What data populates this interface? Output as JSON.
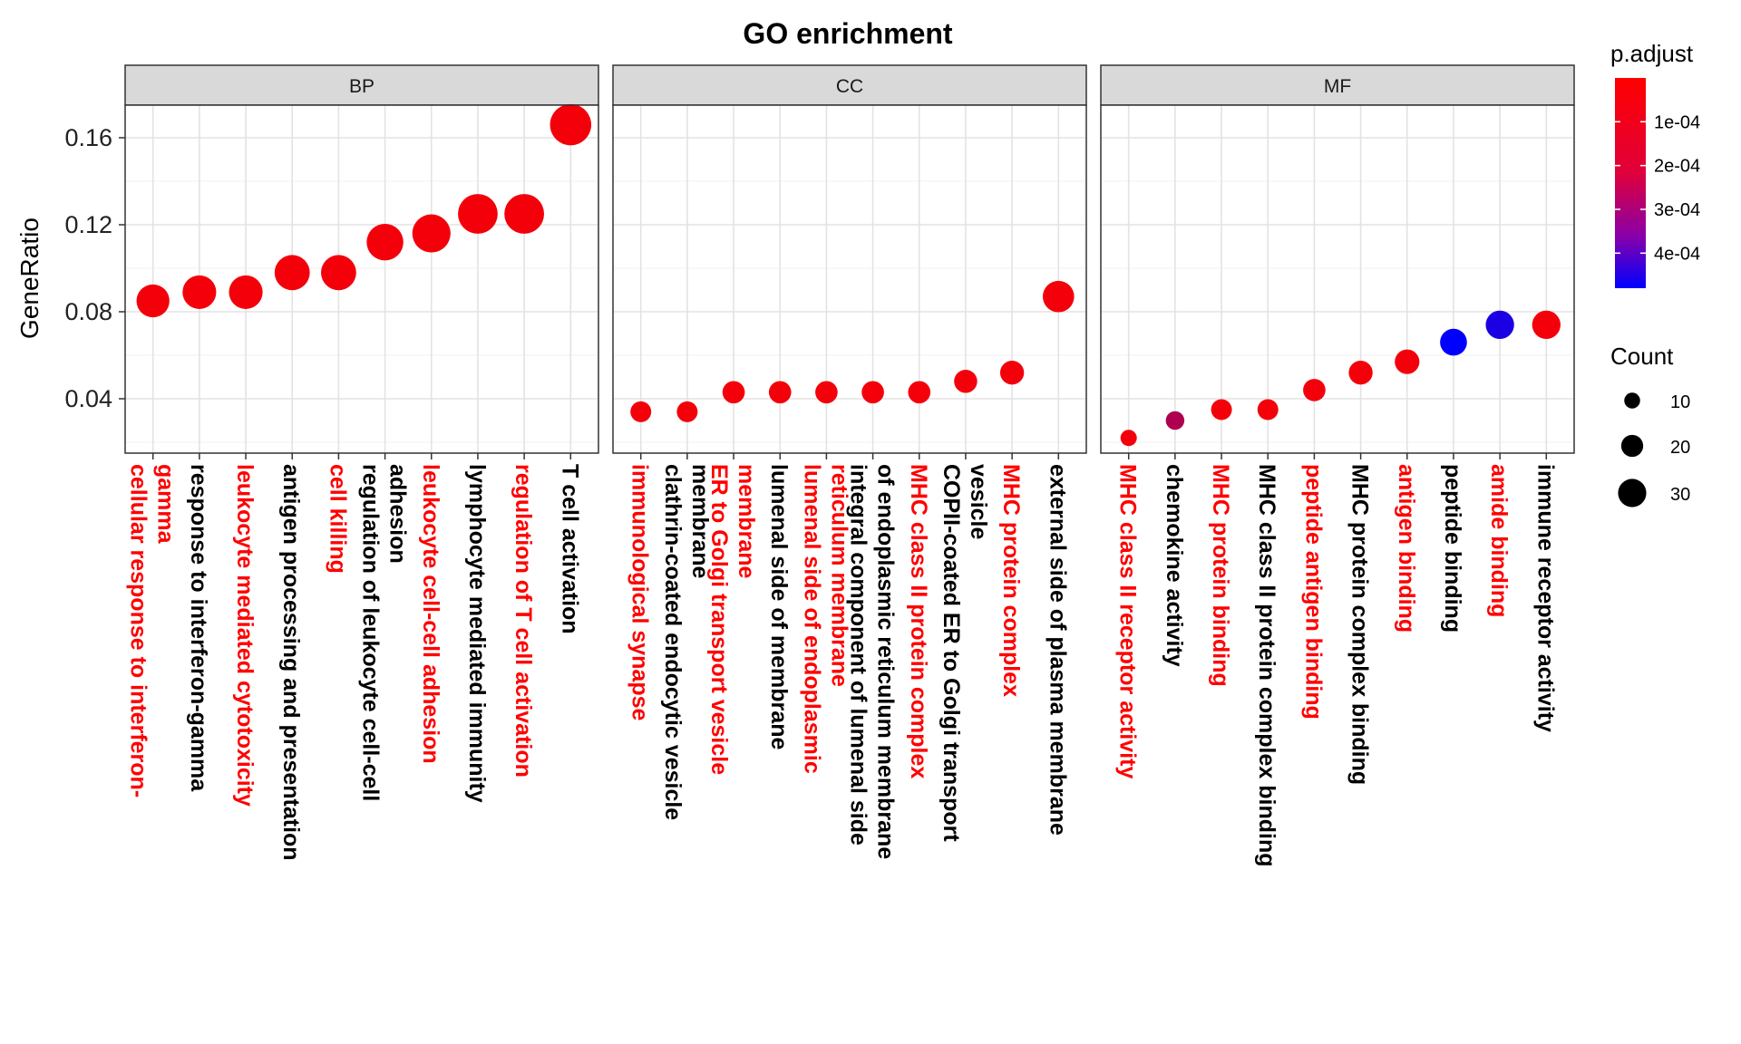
{
  "chart_data": {
    "type": "scatter",
    "title": "GO enrichment",
    "ylabel": "GeneRatio",
    "xlabel": "",
    "ylim": [
      0.015,
      0.175
    ],
    "yticks": [
      0.04,
      0.08,
      0.12,
      0.16
    ],
    "ytick_labels": [
      "0.04",
      "0.08",
      "0.12",
      "0.16"
    ],
    "grid": true,
    "highlight_color": "#FF0000",
    "normal_color": "#000000",
    "facets": [
      {
        "name": "BP",
        "categories": [
          {
            "lines": [
              "cellular response to interferon-",
              "gamma"
            ],
            "highlight": true
          },
          {
            "lines": [
              "response to interferon-gamma"
            ],
            "highlight": false
          },
          {
            "lines": [
              "leukocyte mediated cytotoxicity"
            ],
            "highlight": true
          },
          {
            "lines": [
              "antigen processing and presentation"
            ],
            "highlight": false
          },
          {
            "lines": [
              "cell killing"
            ],
            "highlight": true
          },
          {
            "lines": [
              "regulation of leukocyte cell-cell",
              "adhesion"
            ],
            "highlight": false
          },
          {
            "lines": [
              "leukocyte cell-cell adhesion"
            ],
            "highlight": true
          },
          {
            "lines": [
              "lymphocyte mediated immunity"
            ],
            "highlight": false
          },
          {
            "lines": [
              "regulation of T cell activation"
            ],
            "highlight": true
          },
          {
            "lines": [
              "T cell activation"
            ],
            "highlight": false
          }
        ],
        "points": [
          {
            "y": 0.085,
            "count": 28,
            "p_adjust": 2e-05
          },
          {
            "y": 0.089,
            "count": 29,
            "p_adjust": 2e-05
          },
          {
            "y": 0.089,
            "count": 29,
            "p_adjust": 2e-05
          },
          {
            "y": 0.098,
            "count": 31,
            "p_adjust": 2e-05
          },
          {
            "y": 0.098,
            "count": 31,
            "p_adjust": 2e-05
          },
          {
            "y": 0.112,
            "count": 33,
            "p_adjust": 2e-05
          },
          {
            "y": 0.116,
            "count": 35,
            "p_adjust": 2e-05
          },
          {
            "y": 0.125,
            "count": 37,
            "p_adjust": 2e-05
          },
          {
            "y": 0.125,
            "count": 37,
            "p_adjust": 2e-05
          },
          {
            "y": 0.166,
            "count": 39,
            "p_adjust": 2e-05
          }
        ]
      },
      {
        "name": "CC",
        "categories": [
          {
            "lines": [
              "immunological synapse"
            ],
            "highlight": true
          },
          {
            "lines": [
              "clathrin-coated endocytic vesicle",
              "membrane"
            ],
            "highlight": false
          },
          {
            "lines": [
              "ER to Golgi transport vesicle",
              "membrane"
            ],
            "highlight": true
          },
          {
            "lines": [
              "lumenal side of membrane"
            ],
            "highlight": false
          },
          {
            "lines": [
              "lumenal side of endoplasmic",
              "reticulum membrane"
            ],
            "highlight": true
          },
          {
            "lines": [
              "integral component of lumenal side",
              "of endoplasmic reticulum membrane"
            ],
            "highlight": false
          },
          {
            "lines": [
              "MHC class II protein complex"
            ],
            "highlight": true
          },
          {
            "lines": [
              "COPII-coated ER to Golgi transport",
              "vesicle"
            ],
            "highlight": false
          },
          {
            "lines": [
              "MHC protein complex"
            ],
            "highlight": true
          },
          {
            "lines": [
              "external side of plasma membrane"
            ],
            "highlight": false
          }
        ],
        "points": [
          {
            "y": 0.034,
            "count": 12,
            "p_adjust": 2e-05
          },
          {
            "y": 0.034,
            "count": 12,
            "p_adjust": 2e-05
          },
          {
            "y": 0.043,
            "count": 14,
            "p_adjust": 2e-05
          },
          {
            "y": 0.043,
            "count": 14,
            "p_adjust": 2e-05
          },
          {
            "y": 0.043,
            "count": 14,
            "p_adjust": 2e-05
          },
          {
            "y": 0.043,
            "count": 14,
            "p_adjust": 2e-05
          },
          {
            "y": 0.043,
            "count": 14,
            "p_adjust": 2e-05
          },
          {
            "y": 0.048,
            "count": 15,
            "p_adjust": 2e-05
          },
          {
            "y": 0.052,
            "count": 16,
            "p_adjust": 2e-05
          },
          {
            "y": 0.087,
            "count": 26,
            "p_adjust": 2e-05
          }
        ]
      },
      {
        "name": "MF",
        "categories": [
          {
            "lines": [
              "MHC class II receptor activity"
            ],
            "highlight": true
          },
          {
            "lines": [
              "chemokine activity"
            ],
            "highlight": false
          },
          {
            "lines": [
              "MHC protein binding"
            ],
            "highlight": true
          },
          {
            "lines": [
              "MHC class II protein complex binding"
            ],
            "highlight": false
          },
          {
            "lines": [
              "peptide antigen binding"
            ],
            "highlight": true
          },
          {
            "lines": [
              "MHC protein complex binding"
            ],
            "highlight": false
          },
          {
            "lines": [
              "antigen binding"
            ],
            "highlight": true
          },
          {
            "lines": [
              "peptide binding"
            ],
            "highlight": false
          },
          {
            "lines": [
              "amide binding"
            ],
            "highlight": true
          },
          {
            "lines": [
              "immune receptor activity"
            ],
            "highlight": false
          }
        ],
        "points": [
          {
            "y": 0.022,
            "count": 6,
            "p_adjust": 2e-05
          },
          {
            "y": 0.03,
            "count": 9,
            "p_adjust": 0.00015
          },
          {
            "y": 0.035,
            "count": 12,
            "p_adjust": 2e-05
          },
          {
            "y": 0.035,
            "count": 12,
            "p_adjust": 2e-05
          },
          {
            "y": 0.044,
            "count": 14,
            "p_adjust": 2e-05
          },
          {
            "y": 0.052,
            "count": 16,
            "p_adjust": 2e-05
          },
          {
            "y": 0.057,
            "count": 17,
            "p_adjust": 2e-05
          },
          {
            "y": 0.066,
            "count": 20,
            "p_adjust": 0.00048
          },
          {
            "y": 0.074,
            "count": 22,
            "p_adjust": 0.00043
          },
          {
            "y": 0.074,
            "count": 22,
            "p_adjust": 2e-05
          }
        ]
      }
    ],
    "legend": {
      "placement": "right",
      "color": {
        "title": "p.adjust",
        "range": [
          0.0,
          0.00048
        ],
        "high_color": "#FF0000",
        "low_color": "#0000FF",
        "ticks": [
          0.0001,
          0.0002,
          0.0003,
          0.0004
        ],
        "tick_labels": [
          "1e-04",
          "2e-04",
          "3e-04",
          "4e-04"
        ]
      },
      "size": {
        "title": "Count",
        "values": [
          10,
          20,
          30
        ],
        "labels": [
          "10",
          "20",
          "30"
        ]
      }
    }
  }
}
